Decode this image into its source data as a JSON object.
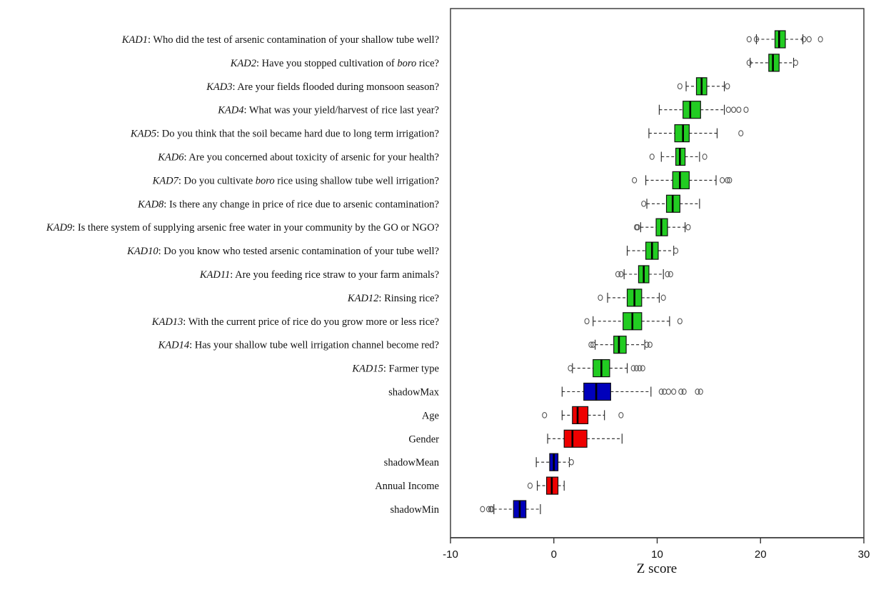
{
  "chart_data": {
    "type": "boxplot",
    "orientation": "horizontal",
    "xlabel": "Z score",
    "xlim": [
      -10,
      30
    ],
    "xticks": [
      "-10",
      "0",
      "10",
      "20",
      "30"
    ],
    "colors": {
      "green": "#22cc22",
      "blue": "#0000bb",
      "red": "#ee0000"
    },
    "items": [
      {
        "code": "KAD1",
        "text": ": Who did the test of arsenic contamination of your shallow tube well?",
        "color": "green",
        "whislo": 19.6,
        "q1": 21.4,
        "med": 21.8,
        "q3": 22.4,
        "whishi": 24.1,
        "fliers": [
          18.9,
          19.6,
          24.2,
          24.7,
          25.8
        ]
      },
      {
        "code": "KAD2",
        "text_parts": [
          ": Have you stopped cultivation of ",
          "boro",
          " rice?"
        ],
        "color": "green",
        "whislo": 19.0,
        "q1": 20.8,
        "med": 21.2,
        "q3": 21.8,
        "whishi": 23.2,
        "fliers": [
          18.9,
          23.4
        ]
      },
      {
        "code": "KAD3",
        "text": ": Are your fields flooded during monsoon season?",
        "color": "green",
        "whislo": 12.8,
        "q1": 13.8,
        "med": 14.3,
        "q3": 14.8,
        "whishi": 16.5,
        "fliers": [
          12.2,
          16.8
        ]
      },
      {
        "code": "KAD4",
        "text": ": What was your yield/harvest of rice last year?",
        "color": "green",
        "whislo": 10.2,
        "q1": 12.5,
        "med": 13.2,
        "q3": 14.2,
        "whishi": 16.5,
        "fliers": [
          16.9,
          17.4,
          17.9,
          18.6
        ]
      },
      {
        "code": "KAD5",
        "text": ": Do you think that the soil became hard due to long term irrigation?",
        "color": "green",
        "whislo": 9.2,
        "q1": 11.7,
        "med": 12.5,
        "q3": 13.1,
        "whishi": 15.8,
        "fliers": [
          18.1
        ]
      },
      {
        "code": "KAD6",
        "text": ": Are you concerned about toxicity of arsenic for your health?",
        "color": "green",
        "whislo": 10.4,
        "q1": 11.8,
        "med": 12.2,
        "q3": 12.7,
        "whishi": 14.1,
        "fliers": [
          9.5,
          14.6
        ]
      },
      {
        "code": "KAD7",
        "text_parts": [
          ": Do you cultivate ",
          "boro",
          " rice using shallow tube well irrigation?"
        ],
        "color": "green",
        "whislo": 8.9,
        "q1": 11.5,
        "med": 12.2,
        "q3": 13.1,
        "whishi": 15.7,
        "fliers": [
          7.8,
          16.3,
          16.8,
          17.0
        ]
      },
      {
        "code": "KAD8",
        "text": ": Is there any change in price of rice due to arsenic contamination?",
        "color": "green",
        "whislo": 9.0,
        "q1": 10.9,
        "med": 11.5,
        "q3": 12.2,
        "whishi": 14.1,
        "fliers": [
          8.7
        ]
      },
      {
        "code": "KAD9",
        "text": ": Is there system of supplying arsenic free water in your community by the GO or NGO?",
        "color": "green",
        "whislo": 8.4,
        "q1": 9.9,
        "med": 10.4,
        "q3": 11.0,
        "whishi": 12.7,
        "fliers": [
          8.0,
          8.1,
          13.0
        ]
      },
      {
        "code": "KAD10",
        "text": ": Do you know who tested arsenic contamination of your tube well?",
        "color": "green",
        "whislo": 7.1,
        "q1": 8.9,
        "med": 9.5,
        "q3": 10.1,
        "whishi": 11.6,
        "fliers": [
          11.8
        ]
      },
      {
        "code": "KAD11",
        "text": ": Are you feeding rice straw to your farm animals?",
        "color": "green",
        "whislo": 6.8,
        "q1": 8.2,
        "med": 8.7,
        "q3": 9.2,
        "whishi": 10.6,
        "fliers": [
          6.2,
          6.5,
          11.0,
          11.3
        ]
      },
      {
        "code": "KAD12",
        "text": ": Rinsing rice?",
        "color": "green",
        "whislo": 5.2,
        "q1": 7.1,
        "med": 7.8,
        "q3": 8.5,
        "whishi": 10.2,
        "fliers": [
          4.5,
          10.6
        ]
      },
      {
        "code": "KAD13",
        "text": ": With the current price of rice do you grow more or less rice?",
        "color": "green",
        "whislo": 3.8,
        "q1": 6.7,
        "med": 7.6,
        "q3": 8.5,
        "whishi": 11.2,
        "fliers": [
          3.2,
          12.2
        ]
      },
      {
        "code": "KAD14",
        "text": ": Has your shallow tube well irrigation channel become red?",
        "color": "green",
        "whislo": 4.0,
        "q1": 5.8,
        "med": 6.3,
        "q3": 7.0,
        "whishi": 8.8,
        "fliers": [
          3.6,
          3.8,
          9.0,
          9.3
        ]
      },
      {
        "code": "KAD15",
        "text": ": Farmer type",
        "color": "green",
        "whislo": 1.8,
        "q1": 3.8,
        "med": 4.6,
        "q3": 5.4,
        "whishi": 7.1,
        "fliers": [
          1.6,
          7.7,
          8.0,
          8.3,
          8.6
        ]
      },
      {
        "label": "shadowMax",
        "color": "blue",
        "whislo": 0.8,
        "q1": 2.9,
        "med": 4.1,
        "q3": 5.5,
        "whishi": 9.4,
        "fliers": [
          10.4,
          10.7,
          11.1,
          11.6,
          12.3,
          12.6,
          13.9,
          14.2
        ]
      },
      {
        "label": "Age",
        "color": "red",
        "whislo": 0.8,
        "q1": 1.8,
        "med": 2.3,
        "q3": 3.3,
        "whishi": 4.9,
        "fliers": [
          -0.9,
          6.5
        ]
      },
      {
        "label": "Gender",
        "color": "red",
        "whislo": -0.6,
        "q1": 1.0,
        "med": 1.8,
        "q3": 3.2,
        "whishi": 6.6,
        "fliers": []
      },
      {
        "label": "shadowMean",
        "color": "blue",
        "whislo": -1.7,
        "q1": -0.4,
        "med": 0.0,
        "q3": 0.4,
        "whishi": 1.5,
        "fliers": [
          1.7
        ]
      },
      {
        "label": "Annual Income",
        "color": "red",
        "whislo": -1.6,
        "q1": -0.7,
        "med": -0.2,
        "q3": 0.4,
        "whishi": 1.0,
        "fliers": [
          -2.3
        ]
      },
      {
        "label": "shadowMin",
        "color": "blue",
        "whislo": -5.8,
        "q1": -3.9,
        "med": -3.3,
        "q3": -2.7,
        "whishi": -1.3,
        "fliers": [
          -6.9,
          -6.3,
          -6.1,
          -6.0
        ]
      }
    ]
  }
}
